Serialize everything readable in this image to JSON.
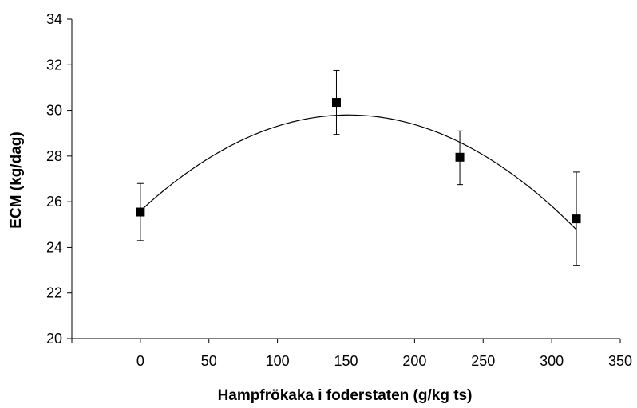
{
  "chart_data": {
    "type": "scatter",
    "title": "",
    "xlabel": "Hampfrökaka i foderstaten (g/kg ts)",
    "ylabel": "ECM (kg/dag)",
    "xlim": [
      -50,
      350
    ],
    "ylim": [
      20,
      34
    ],
    "xticks": [
      0,
      50,
      100,
      150,
      200,
      250,
      300,
      350
    ],
    "yticks": [
      20,
      22,
      24,
      26,
      28,
      30,
      32,
      34
    ],
    "grid": false,
    "legend": "none",
    "series": [
      {
        "marker": "square",
        "color": "#000000",
        "points": [
          {
            "x": 0,
            "y": 25.55,
            "err_low": 24.3,
            "err_high": 26.8
          },
          {
            "x": 143,
            "y": 30.35,
            "err_low": 28.95,
            "err_high": 31.75
          },
          {
            "x": 233,
            "y": 27.95,
            "err_low": 26.75,
            "err_high": 29.1
          },
          {
            "x": 318,
            "y": 25.25,
            "err_low": 23.2,
            "err_high": 27.3
          }
        ]
      }
    ],
    "trendline": {
      "type": "quadratic",
      "coefficients": [
        25.6,
        0.0553,
        -0.000182
      ],
      "x_range": [
        0,
        318
      ],
      "color": "#000000"
    }
  }
}
